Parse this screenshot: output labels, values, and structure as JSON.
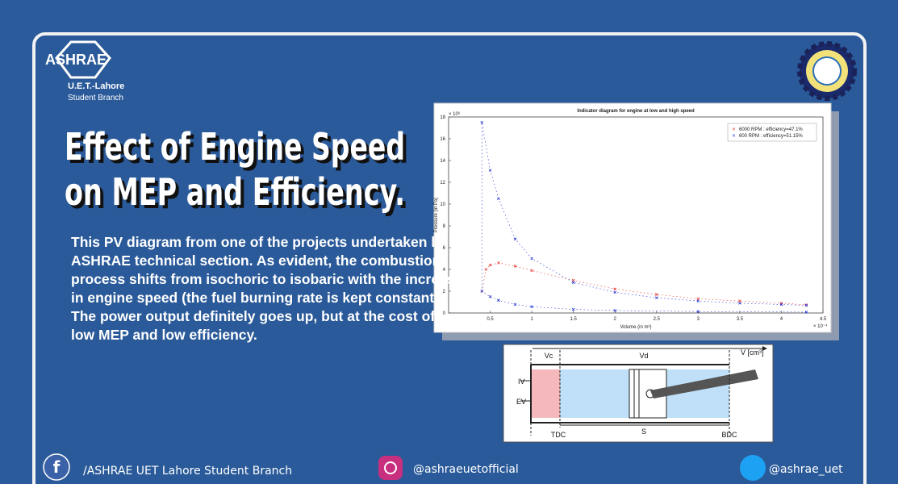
{
  "header": {
    "logo": "ASHRAE",
    "branch": "U.E.T.-Lahore",
    "branch_sub": "Student Branch"
  },
  "title": [
    "Effect of Engine Speed",
    "on MEP and Efficiency."
  ],
  "body": [
    "This PV diagram from one of the projects undertaken by",
    "ASHRAE technical section. As evident, the combustion",
    "process shifts from isochoric to isobaric with the increase",
    "in engine speed (the fuel burning rate is kept constant).",
    "The power output definitely goes up, but at the cost of",
    "low MEP and low efficiency."
  ],
  "chart_data": {
    "type": "scatter",
    "title": "Indicator diagram for engine at low and high speed",
    "xlabel": "Volume (in m³)",
    "ylabel": "Pressure (in Pa)",
    "x_multiplier": "× 10⁻⁴",
    "y_multiplier": "× 10⁶",
    "xlim": [
      0,
      4.5
    ],
    "ylim": [
      0,
      18
    ],
    "xticks": [
      0.5,
      1,
      1.5,
      2,
      2.5,
      3,
      3.5,
      4,
      4.5
    ],
    "yticks": [
      0,
      2,
      4,
      6,
      8,
      10,
      12,
      14,
      16,
      18
    ],
    "legend": "upper right",
    "series": [
      {
        "name": "6000 RPM : efficiency=47.1%",
        "color": "#e8322b",
        "x": [
          0.4,
          0.45,
          0.5,
          0.6,
          0.8,
          1,
          1.5,
          2,
          2.5,
          3,
          3.5,
          4,
          4.3
        ],
        "values": [
          2,
          4,
          4.4,
          4.6,
          4.3,
          3.9,
          3,
          2.2,
          1.7,
          1.3,
          1.1,
          0.9,
          0.75
        ]
      },
      {
        "name": "600 RPM : efficiency=51.15%",
        "color": "#2233d6",
        "x": [
          4.3,
          3,
          2,
          1.5,
          1,
          0.8,
          0.6,
          0.5,
          0.4,
          0.4,
          0.5,
          0.6,
          0.8,
          1,
          1.5,
          2,
          2.5,
          3,
          3.5,
          4,
          4.3
        ],
        "values": [
          0.08,
          0.13,
          0.23,
          0.33,
          0.58,
          0.78,
          1.16,
          1.5,
          2,
          17.5,
          13.1,
          10.5,
          6.8,
          5,
          2.8,
          1.9,
          1.4,
          1.1,
          0.9,
          0.78,
          0.7
        ]
      }
    ]
  },
  "engine_diagram": {
    "vc": "Vc",
    "vd": "Vd",
    "v": "V [cm³]",
    "iv": "IV",
    "ev": "EV",
    "tdc": "TDC",
    "s": "S",
    "bdc": "BDC"
  },
  "footer": {
    "facebook": "/ASHRAE UET Lahore Student Branch",
    "instagram": "@ashraeuetofficial",
    "twitter": "@ashrae_uet"
  }
}
